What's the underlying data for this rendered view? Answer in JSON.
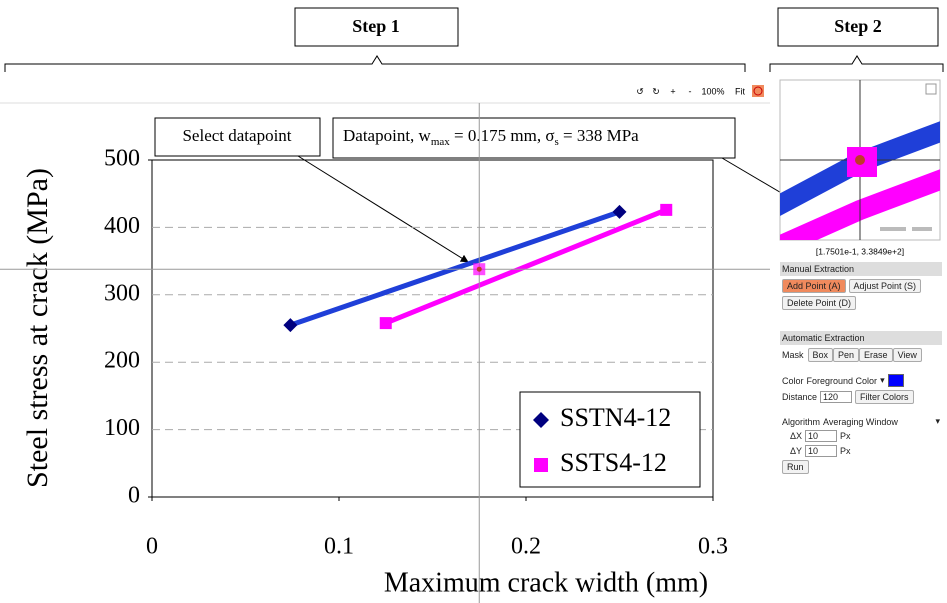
{
  "steps": [
    "Step 1",
    "Step 2"
  ],
  "toolbar": [
    "↺",
    "↻",
    "+",
    "-",
    "100%",
    "Fit"
  ],
  "chart_data": {
    "type": "line",
    "xlabel": "Maximum crack width (mm)",
    "ylabel": "Steel stress at crack (MPa)",
    "xlim": [
      0,
      0.3
    ],
    "xticks": [
      0,
      0.1,
      0.2,
      0.3
    ],
    "ylim": [
      0,
      500
    ],
    "yticks": [
      0,
      100,
      200,
      300,
      400,
      500
    ],
    "grid": true,
    "legend": "lower right",
    "series": [
      {
        "name": "SSTN4-12",
        "color": "#1f3fd8",
        "marker_color": "#00007f",
        "marker": "diamond",
        "x": [
          0.074,
          0.25
        ],
        "values": [
          255,
          423
        ]
      },
      {
        "name": "SSTS4-12",
        "color": "#ff00ff",
        "marker_color": "#ff00ff",
        "marker": "square",
        "x": [
          0.125,
          0.275
        ],
        "values": [
          258,
          426
        ]
      }
    ],
    "selected_point": {
      "x": 0.175,
      "y": 338
    },
    "annotations": {
      "select": "Select datapoint",
      "datapoint": {
        "prefix": "Datapoint, w",
        "w_sub": "max",
        "w_value": " = 0.175 mm, σ",
        "s_sub": "s",
        "s_value": " = 338 MPa"
      }
    }
  },
  "zoom": {
    "coordinates": "[1.7501e-1, 3.3849e+2]"
  },
  "manual_extraction": {
    "title": "Manual Extraction",
    "buttons": [
      "Add Point (A)",
      "Adjust Point (S)",
      "Delete Point (D)"
    ]
  },
  "automatic_extraction": {
    "title": "Automatic Extraction",
    "mask_label": "Mask",
    "mask_buttons": [
      "Box",
      "Pen",
      "Erase",
      "View"
    ],
    "color_label": "Color",
    "color_mode": "Foreground Color",
    "color": "#0000ff",
    "distance_label": "Distance",
    "distance": "120",
    "filter_button": "Filter Colors",
    "algorithm_label": "Algorithm",
    "algorithm": "Averaging Window",
    "dx_label": "ΔX",
    "dx": "10",
    "dy_label": "ΔY",
    "dy": "10",
    "unit": "Px",
    "run": "Run"
  }
}
